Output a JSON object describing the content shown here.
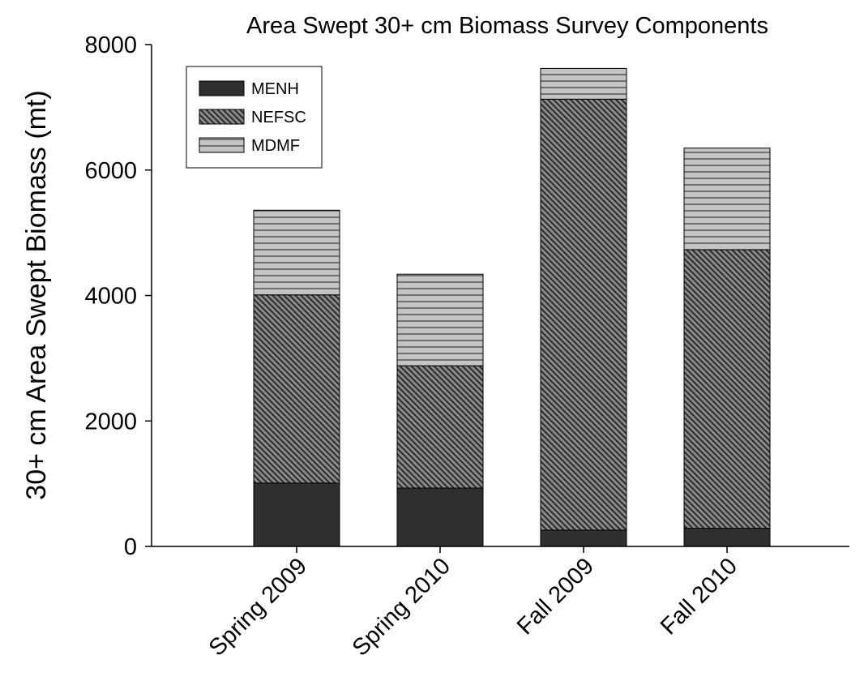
{
  "chart_data": {
    "type": "bar",
    "stacked": true,
    "title": "Area Swept 30+ cm Biomass Survey Components",
    "ylabel": "30+ cm Area Swept Biomass (mt)",
    "xlabel": "",
    "ylim": [
      0,
      8000
    ],
    "yticks": [
      "0",
      "2000",
      "4000",
      "6000",
      "8000"
    ],
    "categories": [
      "Spring 2009",
      "Spring 2010",
      "Fall 2009",
      "Fall 2010"
    ],
    "series": [
      {
        "name": "MENH",
        "values": [
          1010,
          930,
          260,
          290
        ],
        "color": "#2f2f2f",
        "pattern": "solid"
      },
      {
        "name": "NEFSC",
        "values": [
          3000,
          1950,
          6870,
          4440
        ],
        "color": "#666666",
        "pattern": "diagonal-hatch"
      },
      {
        "name": "MDMF",
        "values": [
          1350,
          1460,
          490,
          1620
        ],
        "color": "#bbbbbb",
        "pattern": "horizontal-lines"
      }
    ],
    "legend_position": "top-left",
    "grid": false
  }
}
